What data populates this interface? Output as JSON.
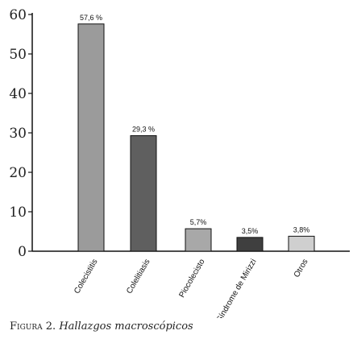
{
  "chart_data": {
    "type": "bar",
    "categories": [
      "Colecistitis",
      "Colelitiasis",
      "Piocolecisto",
      "Síndrome de Mirizzi",
      "Otros"
    ],
    "values": [
      57.6,
      29.3,
      5.7,
      3.5,
      3.8
    ],
    "data_labels": [
      "57,6 %",
      "29,3 %",
      "5,7%",
      "3,5%",
      "3,8%"
    ],
    "bar_colors": [
      "#9b9b9b",
      "#5f5f5f",
      "#a8a8a8",
      "#3f3f3f",
      "#cfcfcf"
    ],
    "ylim": [
      0,
      60
    ],
    "yticks": [
      0,
      10,
      20,
      30,
      40,
      50,
      60
    ],
    "ytick_labels": [
      "0",
      "10",
      "20",
      "30",
      "40",
      "50",
      "60"
    ],
    "xlabel": "",
    "ylabel": "",
    "grid": false,
    "legend": "none"
  },
  "caption": {
    "prefix": "Figura 2.",
    "title": "Hallazgos macroscópicos"
  }
}
